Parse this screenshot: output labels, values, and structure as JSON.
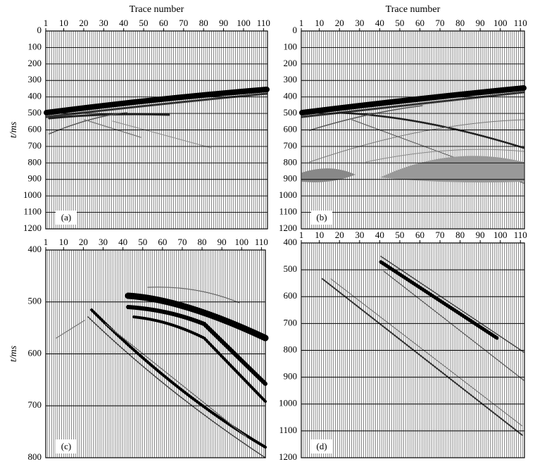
{
  "chart_data": [
    {
      "type": "seismic",
      "xlabel": "Trace number",
      "ylabel": "t/ms",
      "annotation": "(a)",
      "xlim": [
        1,
        112
      ],
      "xticks": [
        1,
        10,
        20,
        30,
        40,
        50,
        60,
        70,
        80,
        90,
        100,
        110
      ],
      "ylim": [
        0,
        1200
      ],
      "yticks": [
        0,
        100,
        200,
        300,
        400,
        500,
        600,
        700,
        800,
        900,
        1000,
        1100,
        1200
      ],
      "grid": true
    },
    {
      "type": "seismic",
      "xlabel": "Trace number",
      "annotation": "(b)",
      "xlim": [
        1,
        112
      ],
      "xticks": [
        1,
        10,
        20,
        30,
        40,
        50,
        60,
        70,
        80,
        90,
        100,
        110
      ],
      "ylim": [
        0,
        1200
      ],
      "yticks": [
        0,
        100,
        200,
        300,
        400,
        500,
        600,
        700,
        800,
        900,
        1000,
        1100,
        1200
      ],
      "grid": true
    },
    {
      "type": "seismic",
      "ylabel": "t/ms",
      "annotation": "(c)",
      "xlim": [
        1,
        112
      ],
      "xticks": [
        1,
        10,
        20,
        30,
        40,
        50,
        60,
        70,
        80,
        90,
        100,
        110
      ],
      "ylim": [
        400,
        800
      ],
      "yticks": [
        400,
        500,
        600,
        700,
        800
      ],
      "grid": true
    },
    {
      "type": "seismic",
      "annotation": "(d)",
      "xlim": [
        1,
        112
      ],
      "xticks": [
        1,
        10,
        20,
        30,
        40,
        50,
        60,
        70,
        80,
        90,
        100,
        110
      ],
      "ylim": [
        400,
        1200
      ],
      "yticks": [
        400,
        500,
        600,
        700,
        800,
        900,
        1000,
        1100,
        1200
      ],
      "grid": true
    }
  ]
}
